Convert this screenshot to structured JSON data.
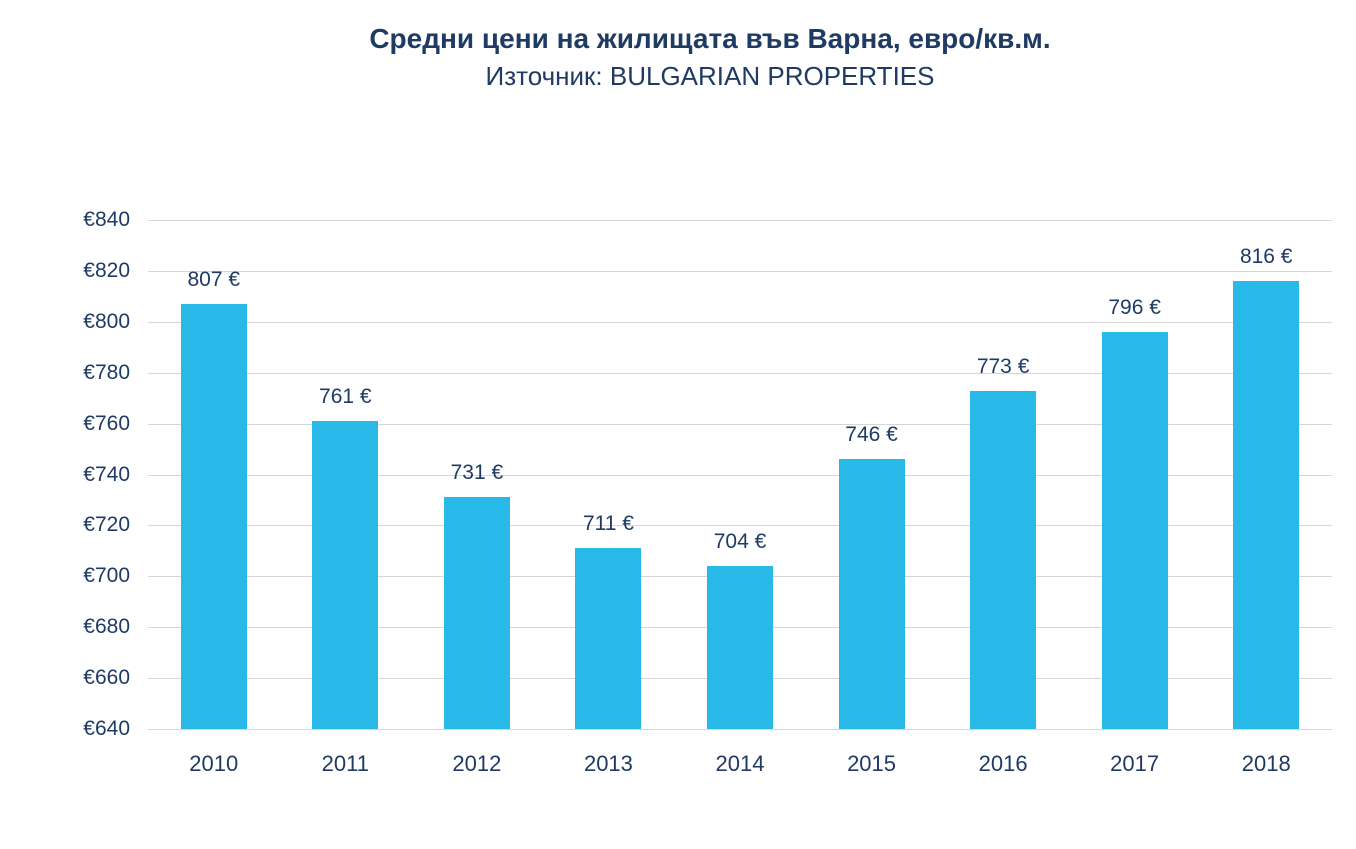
{
  "title": "Средни цени на жилищата във Варна, евро/кв.м.",
  "subtitle": "Източник: BULGARIAN PROPERTIES",
  "colors": {
    "bar": "#28b9e9",
    "text": "#1f3b64",
    "gridline": "#d6d6d6"
  },
  "chart_data": {
    "type": "bar",
    "title": "Средни цени на жилищата във Варна, евро/кв.м.",
    "subtitle": "Източник: BULGARIAN PROPERTIES",
    "categories": [
      "2010",
      "2011",
      "2012",
      "2013",
      "2014",
      "2015",
      "2016",
      "2017",
      "2018"
    ],
    "values": [
      807,
      761,
      731,
      711,
      704,
      746,
      773,
      796,
      816
    ],
    "data_labels": [
      "807 €",
      "761 €",
      "731 €",
      "711 €",
      "704 €",
      "746 €",
      "773 €",
      "796 €",
      "816 €"
    ],
    "ylim": [
      640,
      840
    ],
    "ytick_step": 20,
    "ytick_labels": [
      "€640",
      "€660",
      "€680",
      "€700",
      "€720",
      "€740",
      "€760",
      "€780",
      "€800",
      "€820",
      "€840"
    ],
    "xlabel": "",
    "ylabel": "",
    "grid": true,
    "legend": false
  }
}
